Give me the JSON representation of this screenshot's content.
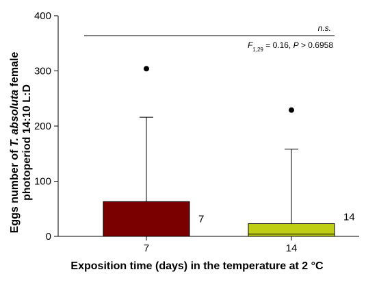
{
  "chart_data": {
    "type": "box",
    "xlabel": "Exposition time (days) in the temperature at 2 °C",
    "ylabel": {
      "line1_prefix": "Eggs number of ",
      "line1_species": "T. absoluta",
      "line1_suffix": " female",
      "line2": "photoperiod 14:10 L:D"
    },
    "ylim": [
      0,
      400
    ],
    "yticks": [
      0,
      100,
      200,
      300,
      400
    ],
    "categories": [
      "7",
      "14"
    ],
    "boxes": [
      {
        "category": "7",
        "min": 0,
        "q1": 0,
        "median": 0,
        "q3": 63,
        "whisker_high": 216,
        "outliers": [
          304
        ],
        "color": "#7a0000",
        "n_label": "7"
      },
      {
        "category": "14",
        "min": 0,
        "q1": 0,
        "median": 4,
        "q3": 23,
        "whisker_high": 158,
        "outliers": [
          229
        ],
        "color": "#bfce12",
        "n_label": "14"
      }
    ],
    "significance": {
      "label": "n.s.",
      "stat_F": "F",
      "stat_df": "1,29",
      "stat_rest": " = 0.16, ",
      "stat_P": "P",
      "stat_tail": " > 0.6958",
      "line_value": 364
    },
    "grid": false
  }
}
